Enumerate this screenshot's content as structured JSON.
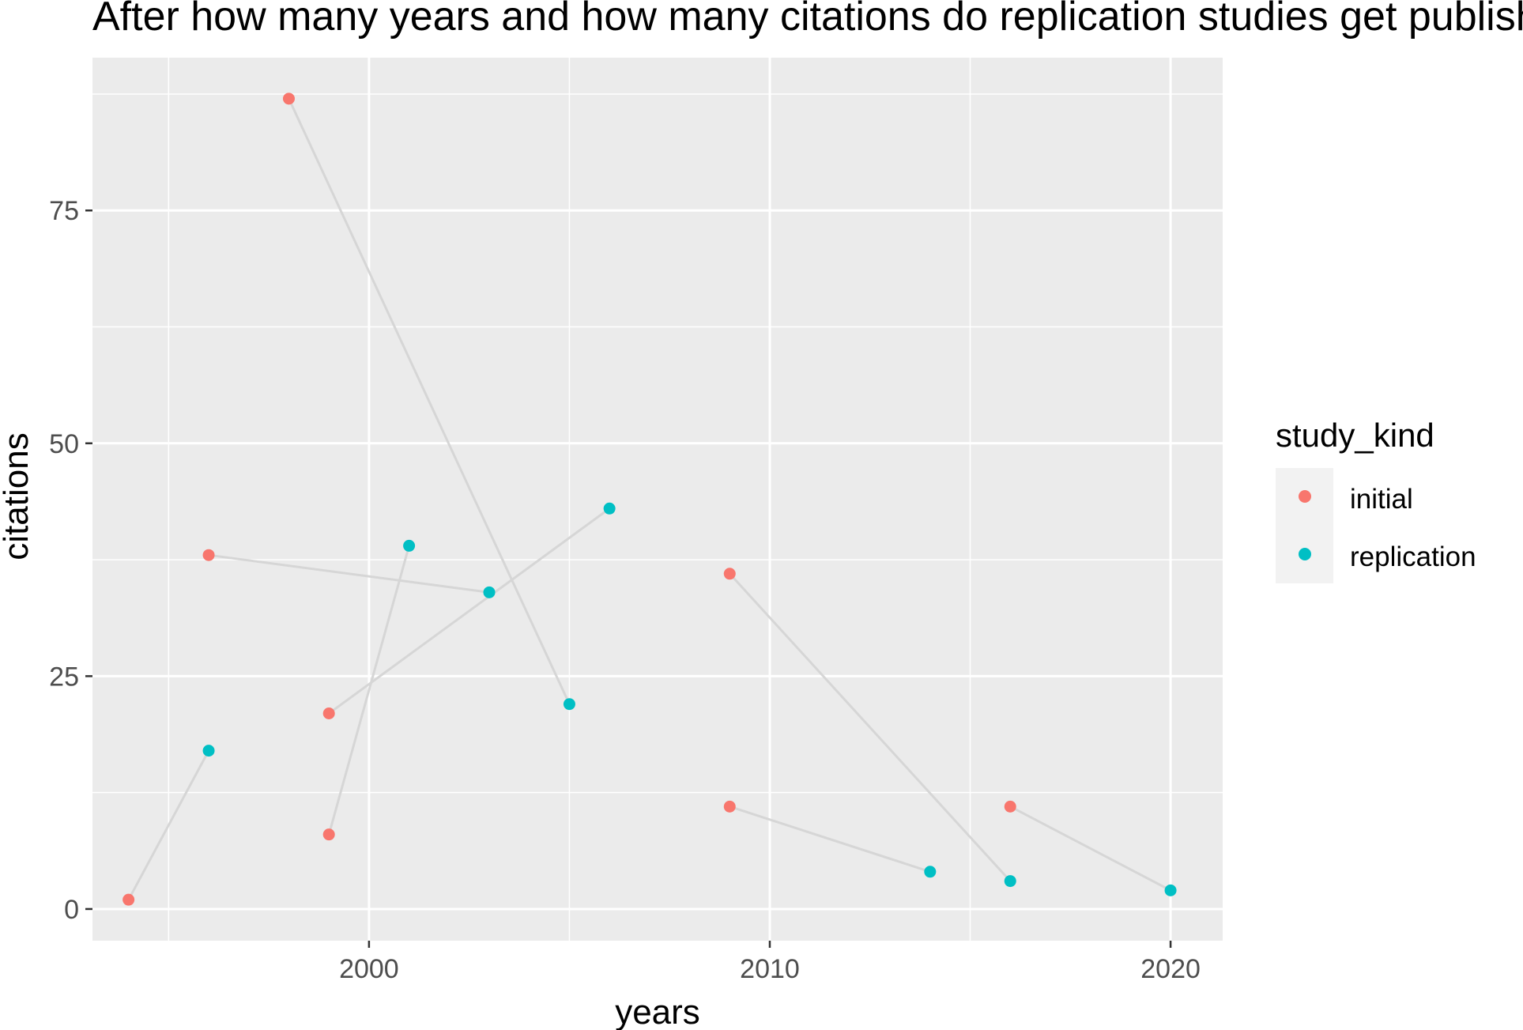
{
  "chart_data": {
    "type": "scatter",
    "title": "After how many years and how many citations do replication studies get published?",
    "xlabel": "years",
    "ylabel": "citations",
    "xlim": [
      1993.1,
      2021.3
    ],
    "ylim": [
      -3.4,
      91.4
    ],
    "x_ticks": [
      2000,
      2010,
      2020
    ],
    "y_ticks": [
      0,
      25,
      50,
      75
    ],
    "x_tick_labels": [
      "2000",
      "2010",
      "2020"
    ],
    "y_tick_labels": [
      "0",
      "25",
      "50",
      "75"
    ],
    "grid": true,
    "legend": {
      "title": "study_kind",
      "position": "right",
      "entries": [
        "initial",
        "replication"
      ]
    },
    "colors": {
      "initial": "#F8766D",
      "replication": "#00BFC4",
      "connector": "#d6d6d6",
      "panel": "#EBEBEB",
      "grid": "#ffffff"
    },
    "series": [
      {
        "name": "initial",
        "points": [
          [
            1994,
            1
          ],
          [
            1996,
            38
          ],
          [
            1998,
            87
          ],
          [
            1999,
            21
          ],
          [
            1999,
            8
          ],
          [
            2009,
            36
          ],
          [
            2009,
            11
          ],
          [
            2016,
            11
          ]
        ]
      },
      {
        "name": "replication",
        "points": [
          [
            1996,
            17
          ],
          [
            2001,
            39
          ],
          [
            2003,
            34
          ],
          [
            2005,
            22
          ],
          [
            2006,
            43
          ],
          [
            2014,
            4
          ],
          [
            2016,
            3
          ],
          [
            2020,
            2
          ]
        ]
      }
    ],
    "pairs": [
      {
        "initial": [
          1994,
          1
        ],
        "replication": [
          1996,
          17
        ]
      },
      {
        "initial": [
          1996,
          38
        ],
        "replication": [
          2003,
          34
        ]
      },
      {
        "initial": [
          1998,
          87
        ],
        "replication": [
          2005,
          22
        ]
      },
      {
        "initial": [
          1999,
          21
        ],
        "replication": [
          2006,
          43
        ]
      },
      {
        "initial": [
          1999,
          8
        ],
        "replication": [
          2001,
          39
        ]
      },
      {
        "initial": [
          2009,
          36
        ],
        "replication": [
          2016,
          3
        ]
      },
      {
        "initial": [
          2009,
          11
        ],
        "replication": [
          2014,
          4
        ]
      },
      {
        "initial": [
          2016,
          11
        ],
        "replication": [
          2020,
          2
        ]
      }
    ]
  }
}
